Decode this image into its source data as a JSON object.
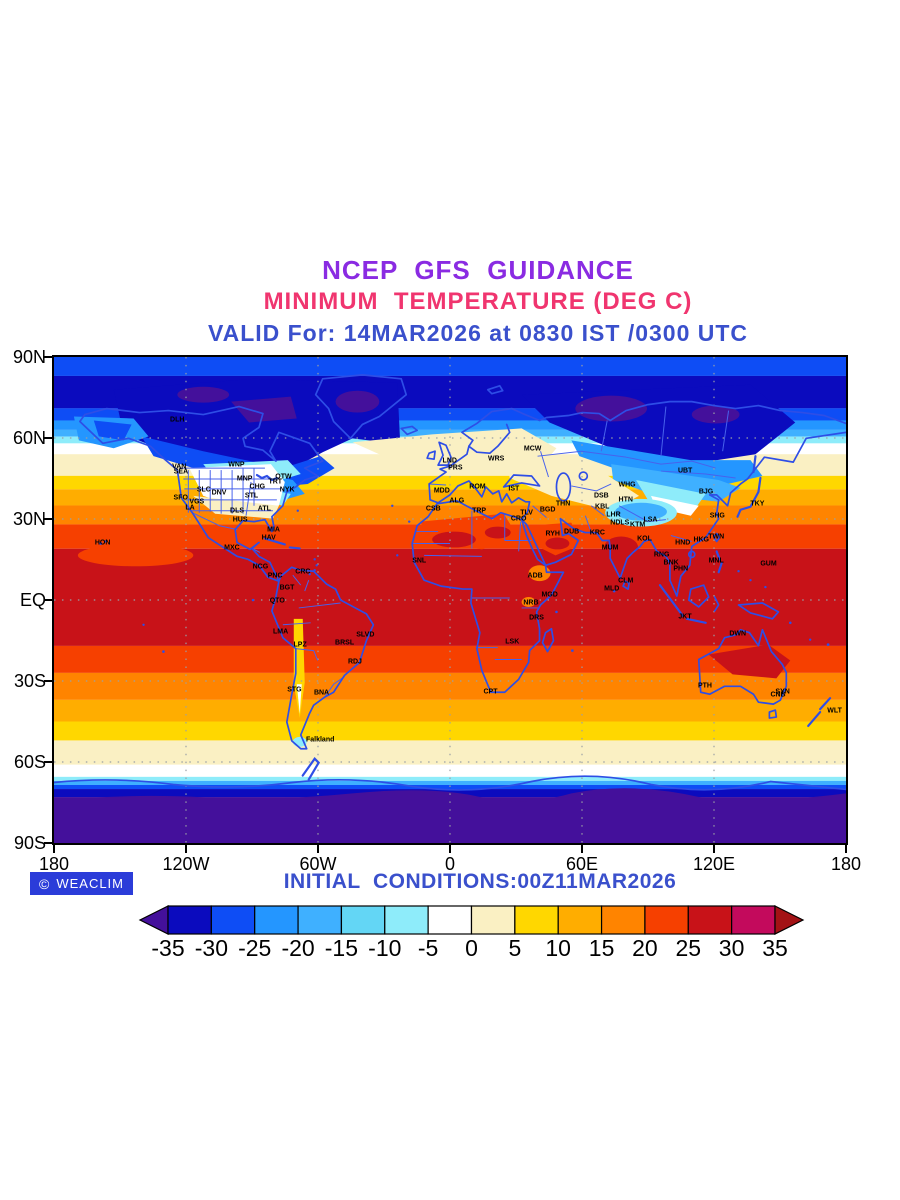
{
  "titles": {
    "line1": "NCEP  GFS  GUIDANCE",
    "line2": "MINIMUM  TEMPERATURE (DEG C)",
    "line3": "VALID For: 14MAR2026 at 0830 IST /0300 UTC"
  },
  "footer": {
    "initial_conditions": "INITIAL  CONDITIONS:00Z11MAR2026",
    "badge": "WEACLIM",
    "badge_symbol": "©"
  },
  "colors": {
    "title1": "#8A2BE2",
    "title2": "#F0356F",
    "title3": "#3A50CC",
    "initial_text": "#3A50CC",
    "badge_bg": "#2B3CD9",
    "coastline": "#2E4EE6"
  },
  "axes": {
    "lat_labels": [
      {
        "text": "90N",
        "lat": 90
      },
      {
        "text": "60N",
        "lat": 60
      },
      {
        "text": "30N",
        "lat": 30
      },
      {
        "text": "EQ",
        "lat": 0
      },
      {
        "text": "30S",
        "lat": -30
      },
      {
        "text": "60S",
        "lat": -60
      },
      {
        "text": "90S",
        "lat": -90
      }
    ],
    "lon_labels": [
      {
        "text": "180",
        "lon": -180
      },
      {
        "text": "120W",
        "lon": -120
      },
      {
        "text": "60W",
        "lon": -60
      },
      {
        "text": "0",
        "lon": 0
      },
      {
        "text": "60E",
        "lon": 60
      },
      {
        "text": "120E",
        "lon": 120
      },
      {
        "text": "180",
        "lon": 180
      }
    ]
  },
  "colorbar": {
    "levels": [
      "-35",
      "-30",
      "-25",
      "-20",
      "-15",
      "-10",
      "-5",
      "0",
      "5",
      "10",
      "15",
      "20",
      "25",
      "30",
      "35"
    ],
    "colors": [
      "#44109B",
      "#0B0BBE",
      "#0E4DF5",
      "#2496FF",
      "#3FB0FF",
      "#63D6F5",
      "#8EECFA",
      "#FFFFFF",
      "#FAF0C3",
      "#FFD700",
      "#FFAD00",
      "#FF8400",
      "#F64000",
      "#C81218",
      "#C30A5C",
      "#A31215"
    ]
  },
  "chart_data": {
    "type": "heatmap",
    "subtype": "global-filled-contour-map",
    "variable": "Minimum Temperature",
    "units": "DEG C",
    "model": "NCEP GFS",
    "valid": "14MAR2026 at 0830 IST /0300 UTC",
    "initial": "00Z11MAR2026",
    "lon_range": [
      -180,
      180
    ],
    "lat_range": [
      -90,
      90
    ],
    "contour_levels": [
      -35,
      -30,
      -25,
      -20,
      -15,
      -10,
      -5,
      0,
      5,
      10,
      15,
      20,
      25,
      30,
      35
    ],
    "legend_position": "bottom"
  },
  "map": {
    "grid": {
      "lats": [
        60,
        30,
        0,
        -30,
        -60
      ],
      "lons": [
        -120,
        -60,
        0,
        60,
        120
      ]
    },
    "bands": [
      [
        90,
        83,
        2
      ],
      [
        83,
        71,
        1
      ],
      [
        71,
        66.5,
        2
      ],
      [
        66.5,
        63,
        3
      ],
      [
        63,
        60.5,
        4
      ],
      [
        60.5,
        58,
        6
      ],
      [
        58,
        54,
        7
      ],
      [
        54,
        46,
        8
      ],
      [
        46,
        41,
        9
      ],
      [
        41,
        35,
        10
      ],
      [
        35,
        28,
        11
      ],
      [
        28,
        19,
        12
      ],
      [
        19,
        -17,
        13
      ],
      [
        -17,
        -27,
        12
      ],
      [
        -27,
        -37,
        11
      ],
      [
        -37,
        -45,
        10
      ],
      [
        -45,
        -52,
        9
      ],
      [
        -52,
        -61,
        8
      ],
      [
        -61,
        -65.5,
        7
      ],
      [
        -65.5,
        -67,
        6
      ],
      [
        -67,
        -68.5,
        4
      ],
      [
        -68.5,
        -70,
        2
      ],
      [
        -70,
        -73,
        1
      ],
      [
        -73,
        -90,
        0
      ]
    ],
    "stations": [
      [
        "DLH",
        -124,
        66.5
      ],
      [
        "VAN",
        -123.1,
        49.3
      ],
      [
        "SEA",
        -122.3,
        47.6
      ],
      [
        "WNP",
        -97.1,
        49.9
      ],
      [
        "MNP",
        -93.3,
        45
      ],
      [
        "CHG",
        -87.6,
        41.9
      ],
      [
        "OTW",
        -75.7,
        45.4
      ],
      [
        "TRT",
        -79.4,
        43.7
      ],
      [
        "NYK",
        -74,
        40.7
      ],
      [
        "DNV",
        -105,
        39.7
      ],
      [
        "STL",
        -90.2,
        38.6
      ],
      [
        "SLC",
        -111.9,
        40.8
      ],
      [
        "SFO",
        -122.4,
        37.8
      ],
      [
        "VGS",
        -115.1,
        36.2
      ],
      [
        "LA",
        -118.2,
        34.1
      ],
      [
        "DLS",
        -96.8,
        32.8
      ],
      [
        "HUS",
        -95.4,
        29.8
      ],
      [
        "ATL",
        -84.4,
        33.7
      ],
      [
        "MIA",
        -80.2,
        25.8
      ],
      [
        "HON",
        -157.9,
        21.3
      ],
      [
        "HAV",
        -82.4,
        23.1
      ],
      [
        "MXC",
        -99.1,
        19.4
      ],
      [
        "NCG",
        -86.2,
        12.1
      ],
      [
        "PNC",
        -79.5,
        9
      ],
      [
        "CRC",
        -66.9,
        10.5
      ],
      [
        "BGT",
        -74.1,
        4.6
      ],
      [
        "QTO",
        -78.5,
        -0.2
      ],
      [
        "LMA",
        -77,
        -12
      ],
      [
        "LPZ",
        -68.1,
        -16.5
      ],
      [
        "BRSL",
        -47.9,
        -15.8
      ],
      [
        "SLVD",
        -38.5,
        -13
      ],
      [
        "RDJ",
        -43.2,
        -22.9
      ],
      [
        "STG",
        -70.7,
        -33.5
      ],
      [
        "BNA",
        -58.4,
        -34.6
      ],
      [
        "Falkland",
        -59,
        -51.7
      ],
      [
        "LND",
        -0.1,
        51.5
      ],
      [
        "PRS",
        2.4,
        48.9
      ],
      [
        "WRS",
        21,
        52.2
      ],
      [
        "MCW",
        37.6,
        55.8
      ],
      [
        "MDD",
        -3.7,
        40.4
      ],
      [
        "ROM",
        12.5,
        41.9
      ],
      [
        "IST",
        29,
        41
      ],
      [
        "CSB",
        -7.6,
        33.6
      ],
      [
        "ALG",
        3.1,
        36.8
      ],
      [
        "TRP",
        13.2,
        32.9
      ],
      [
        "CRO",
        31.2,
        30
      ],
      [
        "SNL",
        -14,
        14.5
      ],
      [
        "ADB",
        38.7,
        9
      ],
      [
        "MGD",
        45.3,
        2
      ],
      [
        "NRB",
        36.8,
        -1.3
      ],
      [
        "DRS",
        39.3,
        -6.8
      ],
      [
        "LSK",
        28.3,
        -15.4
      ],
      [
        "CPT",
        18.4,
        -33.9
      ],
      [
        "TLV",
        34.8,
        32.1
      ],
      [
        "BGD",
        44.4,
        33.3
      ],
      [
        "THN",
        51.4,
        35.7
      ],
      [
        "RYH",
        46.7,
        24.6
      ],
      [
        "DUB",
        55.3,
        25.2
      ],
      [
        "DSB",
        68.8,
        38.5
      ],
      [
        "KBL",
        69.2,
        34.5
      ],
      [
        "WHG",
        80.5,
        42.5
      ],
      [
        "HTN",
        79.9,
        37.1
      ],
      [
        "LHR",
        74.3,
        31.5
      ],
      [
        "NDLS",
        77.2,
        28.6
      ],
      [
        "KTM",
        85.3,
        27.7
      ],
      [
        "LSA",
        91.1,
        29.7
      ],
      [
        "KRC",
        67,
        24.9
      ],
      [
        "MUM",
        72.8,
        19.1
      ],
      [
        "KOL",
        88.4,
        22.6
      ],
      [
        "CLM",
        79.9,
        6.9
      ],
      [
        "MLD",
        73.5,
        4.2
      ],
      [
        "RNG",
        96.2,
        16.8
      ],
      [
        "BNK",
        100.5,
        13.8
      ],
      [
        "PHN",
        104.9,
        11.6
      ],
      [
        "HND",
        105.8,
        21
      ],
      [
        "HKG",
        114.2,
        22.3
      ],
      [
        "TWN",
        121,
        23.5
      ],
      [
        "SHG",
        121.5,
        31.2
      ],
      [
        "BJG",
        116.4,
        39.9
      ],
      [
        "TKY",
        139.7,
        35.7
      ],
      [
        "UBT",
        106.9,
        47.9
      ],
      [
        "MNL",
        121,
        14.6
      ],
      [
        "GUM",
        144.8,
        13.5
      ],
      [
        "JKT",
        106.8,
        -6.2
      ],
      [
        "DWN",
        130.8,
        -12.5
      ],
      [
        "PTH",
        115.9,
        -32
      ],
      [
        "SYN",
        151.2,
        -33.9
      ],
      [
        "CNB",
        149.1,
        -35.3
      ],
      [
        "WLT",
        174.8,
        -41.3
      ]
    ]
  }
}
